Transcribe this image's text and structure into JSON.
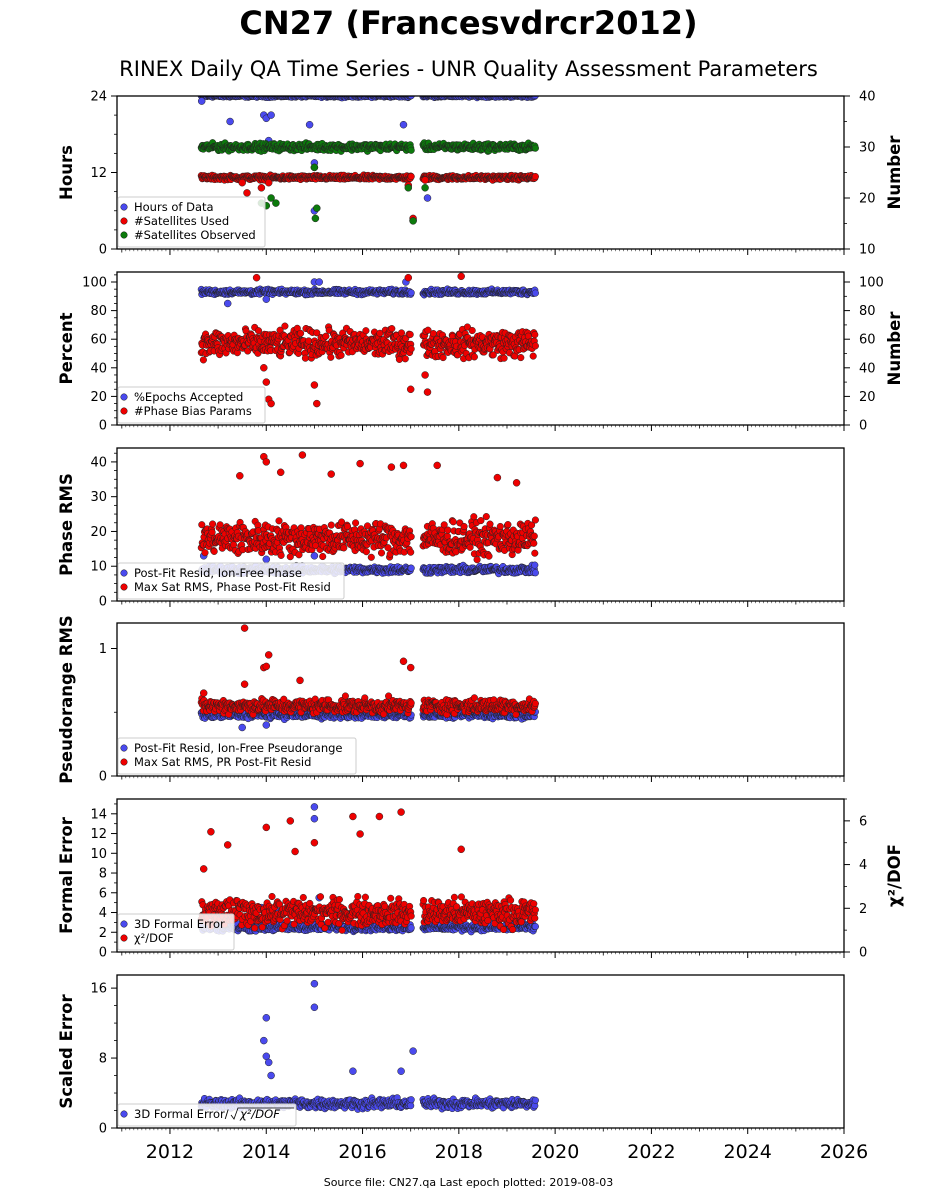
{
  "title": "CN27 (Francesvdrcr2012)",
  "subtitle": "RINEX Daily QA Time Series - UNR Quality Assessment Parameters",
  "footer": "Source file: CN27.qa Last epoch plotted: 2019-08-03",
  "colors": {
    "blue": "#4a4aee",
    "red": "#ee0000",
    "green": "#0c7a0c",
    "edge": "#222222"
  },
  "chart_data": [
    {
      "type": "scatter",
      "ylabel": "Hours",
      "ylabel_right": "Number",
      "ylim": [
        0,
        24
      ],
      "yticks": [
        0,
        12,
        24
      ],
      "ylim_right": [
        10,
        40
      ],
      "yticks_right": [
        10,
        20,
        30,
        40
      ],
      "legend": "bottom-left",
      "series": [
        {
          "name": "Hours of Data",
          "color": "blue",
          "axis": "left",
          "start": 2012.65,
          "end": 2019.59,
          "level": 24,
          "spread": 0.3,
          "gaps": [
            [
              2017.02,
              2017.25
            ]
          ],
          "outliers": [
            [
              2012.66,
              23.2
            ],
            [
              2013.25,
              20
            ],
            [
              2013.95,
              21
            ],
            [
              2014.0,
              20.5
            ],
            [
              2014.05,
              17
            ],
            [
              2014.1,
              21
            ],
            [
              2014.9,
              19.5
            ],
            [
              2015.0,
              6
            ],
            [
              2015.0,
              13.5
            ],
            [
              2016.85,
              19.5
            ],
            [
              2017.05,
              4.5
            ],
            [
              2017.35,
              8
            ]
          ]
        },
        {
          "name": "#Satellites Used",
          "color": "red",
          "axis": "right",
          "start": 2012.65,
          "end": 2019.59,
          "level": 24,
          "spread": 0.6,
          "gaps": [
            [
              2017.02,
              2017.25
            ]
          ],
          "outliers": [
            [
              2013.5,
              23
            ],
            [
              2013.6,
              21
            ],
            [
              2013.9,
              22
            ],
            [
              2014.05,
              23
            ],
            [
              2015.0,
              26
            ],
            [
              2016.95,
              22.5
            ],
            [
              2017.05,
              16
            ],
            [
              2017.3,
              23.5
            ]
          ]
        },
        {
          "name": "#Satellites Observed",
          "color": "green",
          "axis": "right",
          "start": 2012.65,
          "end": 2019.59,
          "level": 30,
          "spread": 1.0,
          "gaps": [
            [
              2017.02,
              2017.25
            ]
          ],
          "outliers": [
            [
              2013.9,
              19
            ],
            [
              2014.0,
              18.5
            ],
            [
              2014.1,
              20
            ],
            [
              2014.2,
              19
            ],
            [
              2015.0,
              26
            ],
            [
              2015.05,
              18
            ],
            [
              2015.02,
              16
            ],
            [
              2016.95,
              22
            ],
            [
              2017.3,
              22
            ],
            [
              2017.05,
              15.5
            ]
          ]
        }
      ]
    },
    {
      "type": "scatter",
      "ylabel": "Percent",
      "ylabel_right": "Number",
      "ylim": [
        0,
        107
      ],
      "yticks": [
        0,
        20,
        40,
        60,
        80,
        100
      ],
      "ylim_right": [
        0,
        107
      ],
      "yticks_right": [
        0,
        20,
        40,
        60,
        80,
        100
      ],
      "legend": "bottom-left",
      "series": [
        {
          "name": "%Epochs Accepted",
          "color": "blue",
          "axis": "left",
          "start": 2012.65,
          "end": 2019.59,
          "level": 93,
          "spread": 2.5,
          "gaps": [
            [
              2017.02,
              2017.25
            ]
          ],
          "outliers": [
            [
              2015.0,
              100
            ],
            [
              2015.1,
              100
            ],
            [
              2016.9,
              100
            ],
            [
              2013.2,
              85
            ],
            [
              2014.0,
              88
            ]
          ]
        },
        {
          "name": "#Phase Bias Params",
          "color": "red",
          "axis": "right",
          "start": 2012.65,
          "end": 2019.59,
          "level": 57,
          "spread": 14,
          "gaps": [
            [
              2017.02,
              2017.25
            ]
          ],
          "outliers": [
            [
              2013.95,
              40
            ],
            [
              2014.0,
              30
            ],
            [
              2014.05,
              18
            ],
            [
              2014.1,
              15
            ],
            [
              2015.0,
              28
            ],
            [
              2015.05,
              15
            ],
            [
              2017.0,
              25
            ],
            [
              2017.35,
              23
            ],
            [
              2017.3,
              35
            ],
            [
              2013.8,
              103
            ],
            [
              2016.95,
              103
            ],
            [
              2018.05,
              104
            ]
          ]
        }
      ]
    },
    {
      "type": "scatter",
      "ylabel": "Phase RMS",
      "ylim": [
        0,
        44
      ],
      "yticks": [
        0,
        10,
        20,
        30,
        40
      ],
      "legend": "bottom-left",
      "series": [
        {
          "name": "Post-Fit Resid, Ion-Free Phase",
          "color": "blue",
          "axis": "left",
          "start": 2012.65,
          "end": 2019.59,
          "level": 9,
          "spread": 1.5,
          "gaps": [
            [
              2017.02,
              2017.25
            ]
          ],
          "outliers": [
            [
              2012.7,
              13
            ],
            [
              2014.0,
              12
            ],
            [
              2015.0,
              13
            ]
          ]
        },
        {
          "name": "Max Sat RMS, Phase Post-Fit Resid",
          "color": "red",
          "axis": "left",
          "start": 2012.65,
          "end": 2019.59,
          "level": 18,
          "spread": 7,
          "gaps": [
            [
              2017.02,
              2017.25
            ]
          ],
          "outliers": [
            [
              2013.95,
              41.5
            ],
            [
              2014.0,
              40
            ],
            [
              2014.75,
              42
            ],
            [
              2015.35,
              36.5
            ],
            [
              2015.95,
              39.5
            ],
            [
              2016.6,
              38.5
            ],
            [
              2016.85,
              39
            ],
            [
              2017.55,
              39
            ],
            [
              2018.8,
              35.5
            ],
            [
              2019.2,
              34
            ],
            [
              2013.45,
              36
            ],
            [
              2014.3,
              37
            ]
          ]
        }
      ]
    },
    {
      "type": "scatter",
      "ylabel": "Pseudorange RMS",
      "ylim": [
        0,
        1.2
      ],
      "yticks": [
        0,
        1
      ],
      "legend": "bottom-left",
      "series": [
        {
          "name": "Post-Fit Resid, Ion-Free Pseudorange",
          "color": "blue",
          "axis": "left",
          "start": 2012.65,
          "end": 2019.59,
          "level": 0.48,
          "spread": 0.04,
          "gaps": [
            [
              2017.02,
              2017.25
            ]
          ],
          "outliers": [
            [
              2014.0,
              0.4
            ],
            [
              2013.5,
              0.38
            ]
          ]
        },
        {
          "name": "Max Sat RMS, PR Post-Fit Resid",
          "color": "red",
          "axis": "left",
          "start": 2012.65,
          "end": 2019.59,
          "level": 0.55,
          "spread": 0.08,
          "gaps": [
            [
              2017.02,
              2017.25
            ]
          ],
          "outliers": [
            [
              2013.55,
              1.16
            ],
            [
              2014.05,
              0.95
            ],
            [
              2013.95,
              0.85
            ],
            [
              2014.0,
              0.86
            ],
            [
              2016.85,
              0.9
            ],
            [
              2017.0,
              0.85
            ],
            [
              2013.55,
              0.72
            ],
            [
              2014.7,
              0.75
            ],
            [
              2012.7,
              0.65
            ]
          ]
        }
      ]
    },
    {
      "type": "scatter",
      "ylabel": "Formal Error",
      "ylabel_right": "χ²/DOF",
      "ylim": [
        0,
        15.5
      ],
      "yticks": [
        0,
        2,
        4,
        6,
        8,
        10,
        12,
        14
      ],
      "ylim_right": [
        0,
        7
      ],
      "yticks_right": [
        0,
        2,
        4,
        6
      ],
      "legend": "bottom-left",
      "series": [
        {
          "name": "3D Formal Error",
          "color": "blue",
          "axis": "left",
          "start": 2012.65,
          "end": 2019.59,
          "level": 2.5,
          "spread": 0.5,
          "gaps": [
            [
              2017.02,
              2017.25
            ]
          ],
          "outliers": [
            [
              2015.0,
              14.7
            ],
            [
              2015.0,
              13.5
            ],
            [
              2013.9,
              4.5
            ],
            [
              2014.0,
              4.2
            ],
            [
              2014.2,
              4.2
            ],
            [
              2015.1,
              5.5
            ]
          ]
        },
        {
          "name": "χ²/DOF",
          "color": "red",
          "axis": "right",
          "start": 2012.65,
          "end": 2019.59,
          "level": 1.8,
          "spread": 0.9,
          "gaps": [
            [
              2017.02,
              2017.25
            ]
          ],
          "outliers": [
            [
              2012.85,
              5.5
            ],
            [
              2014.0,
              5.7
            ],
            [
              2015.0,
              5.0
            ],
            [
              2015.8,
              6.2
            ],
            [
              2016.8,
              6.4
            ],
            [
              2015.95,
              5.4
            ],
            [
              2016.35,
              6.2
            ],
            [
              2013.2,
              4.9
            ],
            [
              2014.6,
              4.6
            ],
            [
              2018.05,
              4.7
            ],
            [
              2014.5,
              6.0
            ],
            [
              2012.7,
              3.8
            ]
          ]
        }
      ]
    },
    {
      "type": "scatter",
      "ylabel": "Scaled Error",
      "ylim": [
        0,
        17.5
      ],
      "yticks": [
        0,
        8,
        16
      ],
      "xlim": [
        2010.9,
        2026
      ],
      "xticks": [
        "2012",
        "2014",
        "2016",
        "2018",
        "2020",
        "2022",
        "2024",
        "2026"
      ],
      "legend": "bottom-left",
      "series": [
        {
          "name": "3D Formal Error/",
          "name_sqrt": "χ²/DOF",
          "color": "blue",
          "axis": "left",
          "start": 2012.65,
          "end": 2019.59,
          "level": 2.8,
          "spread": 0.8,
          "gaps": [
            [
              2017.02,
              2017.25
            ]
          ],
          "outliers": [
            [
              2015.0,
              16.5
            ],
            [
              2015.0,
              13.8
            ],
            [
              2014.0,
              12.6
            ],
            [
              2013.95,
              10
            ],
            [
              2014.0,
              8.2
            ],
            [
              2014.05,
              7.5
            ],
            [
              2017.05,
              8.8
            ],
            [
              2016.8,
              6.5
            ],
            [
              2015.8,
              6.5
            ],
            [
              2014.1,
              6.0
            ]
          ]
        }
      ]
    }
  ]
}
